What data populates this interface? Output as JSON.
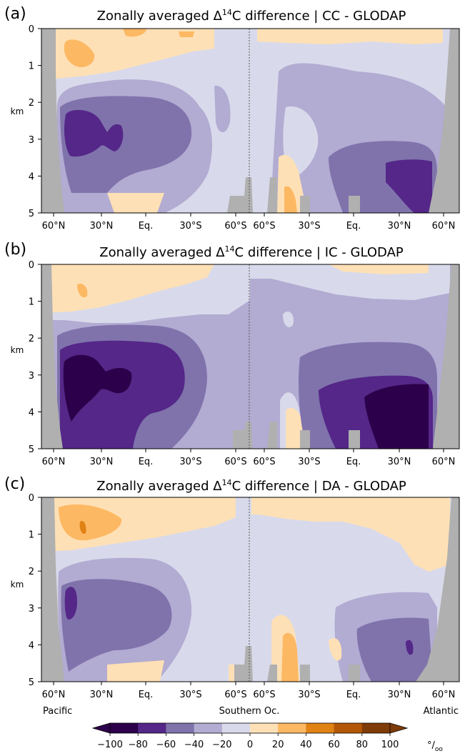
{
  "figure": {
    "panels": [
      {
        "id": "a",
        "label": "(a)",
        "title_main": "Zonally averaged Δ",
        "title_sup": "14",
        "title_rest": "C difference | CC - GLODAP",
        "ylabel": "km"
      },
      {
        "id": "b",
        "label": "(b)",
        "title_main": "Zonally averaged Δ",
        "title_sup": "14",
        "title_rest": "C difference | IC - GLODAP",
        "ylabel": "km"
      },
      {
        "id": "c",
        "label": "(c)",
        "title_main": "Zonally averaged Δ",
        "title_sup": "14",
        "title_rest": "C difference | DA - GLODAP",
        "ylabel": "km"
      }
    ],
    "basin_labels": {
      "left": "Pacific",
      "center": "Southern Oc.",
      "right": "Atlantic"
    },
    "colorbar_unit": "°/oo"
  },
  "chart_data": {
    "type": "heatmap",
    "x_ticks": [
      "60°N",
      "30°N",
      "Eq.",
      "30°S",
      "60°S",
      "60°S",
      "30°S",
      "Eq.",
      "30°N",
      "60°N"
    ],
    "y_ticks": [
      "0",
      "1",
      "2",
      "3",
      "4",
      "5"
    ],
    "ylim_km": [
      0,
      5
    ],
    "colorbar": {
      "ticks": [
        "−100",
        "−80",
        "−60",
        "−40",
        "−20",
        "0",
        "20",
        "40",
        "60",
        "80",
        "100"
      ],
      "levels": [
        -100,
        -80,
        -60,
        -40,
        -20,
        0,
        20,
        40,
        60,
        80,
        100
      ],
      "colors": [
        "#2d004b",
        "#542788",
        "#8073ac",
        "#b2abd2",
        "#d8daeb",
        "#fee0b6",
        "#fdb863",
        "#e08214",
        "#b35806",
        "#7f3b08"
      ],
      "extend": "both"
    },
    "land_color": "#b0b0b0",
    "panels": [
      {
        "id": "a",
        "experiment": "CC",
        "reference": "GLODAP",
        "deep_north_pacific_min": -80,
        "deep_north_atlantic_min": -80,
        "upper_pacific_max": 40
      },
      {
        "id": "b",
        "experiment": "IC",
        "reference": "GLODAP",
        "deep_north_pacific_min": -100,
        "deep_north_atlantic_min": -100,
        "upper_pacific_max": 40
      },
      {
        "id": "c",
        "experiment": "DA",
        "reference": "GLODAP",
        "deep_north_pacific_min": -80,
        "deep_north_atlantic_min": -80,
        "upper_pacific_max": 60
      }
    ]
  }
}
